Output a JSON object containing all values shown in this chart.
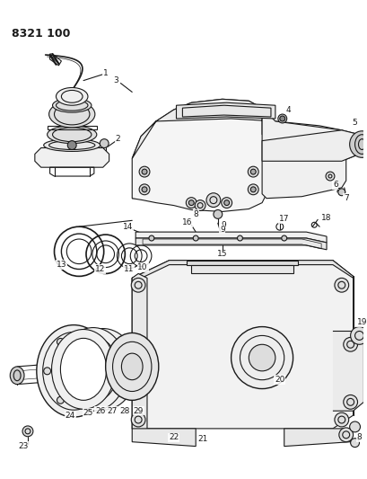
{
  "title": "8321 100",
  "bg_color": "#ffffff",
  "line_color": "#1a1a1a",
  "fig_width": 4.1,
  "fig_height": 5.33,
  "dpi": 100
}
